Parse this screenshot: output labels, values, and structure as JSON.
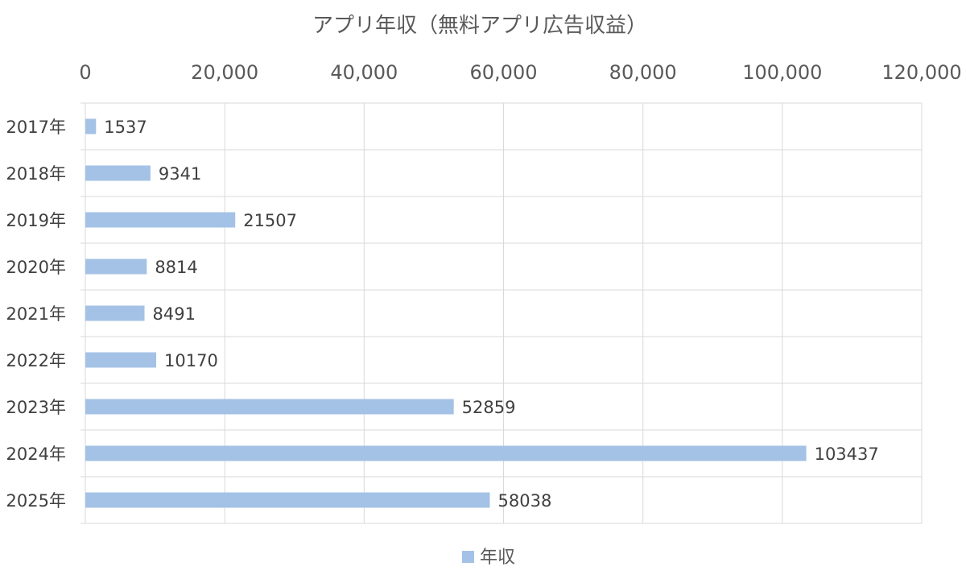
{
  "chart_data": {
    "type": "bar",
    "orientation": "horizontal",
    "title": "アプリ年収（無料アプリ広告収益）",
    "categories": [
      "2017年",
      "2018年",
      "2019年",
      "2020年",
      "2021年",
      "2022年",
      "2023年",
      "2024年",
      "2025年"
    ],
    "series": [
      {
        "name": "年収",
        "values": [
          1537,
          9341,
          21507,
          8814,
          8491,
          10170,
          52859,
          103437,
          58038
        ],
        "data_labels": [
          "1537",
          "9341",
          "21507",
          "8814",
          "8491",
          "10170",
          "52859",
          "103437",
          "58038"
        ]
      }
    ],
    "x_ticks": [
      "0",
      "20,000",
      "40,000",
      "60,000",
      "80,000",
      "100,000",
      "120,000"
    ],
    "xlim": [
      0,
      120000
    ],
    "x_axis_position": "top",
    "grid": true,
    "legend": "bottom",
    "colors": {
      "bar": "#a4c2e6",
      "grid": "#d9d9d9",
      "text": "#595959",
      "label": "#404040"
    }
  }
}
